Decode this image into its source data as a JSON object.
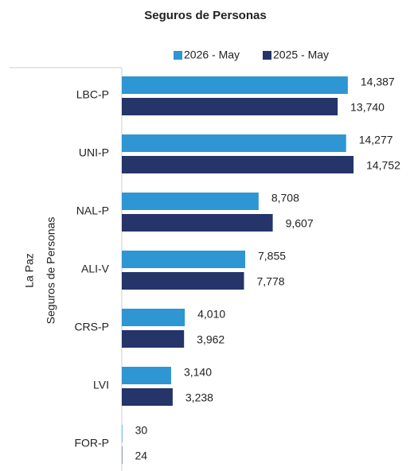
{
  "chart_data": {
    "type": "hbar",
    "title": "Seguros de Personas",
    "group_labels": [
      "La Paz",
      "Seguros de Personas"
    ],
    "categories": [
      "LBC-P",
      "UNI-P",
      "NAL-P",
      "ALI-V",
      "CRS-P",
      "LVI",
      "FOR-P"
    ],
    "series": [
      {
        "name": "2026 - May",
        "color": "#2e96d3",
        "values": [
          14387,
          14277,
          8708,
          7855,
          4010,
          3140,
          30
        ],
        "value_labels": [
          "14,387",
          "14,277",
          "8,708",
          "7,855",
          "4,010",
          "3,140",
          "30"
        ]
      },
      {
        "name": "2025 - May",
        "color": "#253469",
        "values": [
          13740,
          14752,
          9607,
          7778,
          3962,
          3238,
          24
        ],
        "value_labels": [
          "13,740",
          "14,752",
          "9,607",
          "7,778",
          "3,962",
          "3,238",
          "24"
        ]
      }
    ],
    "xlim": [
      0,
      15000
    ],
    "legend": "top"
  }
}
